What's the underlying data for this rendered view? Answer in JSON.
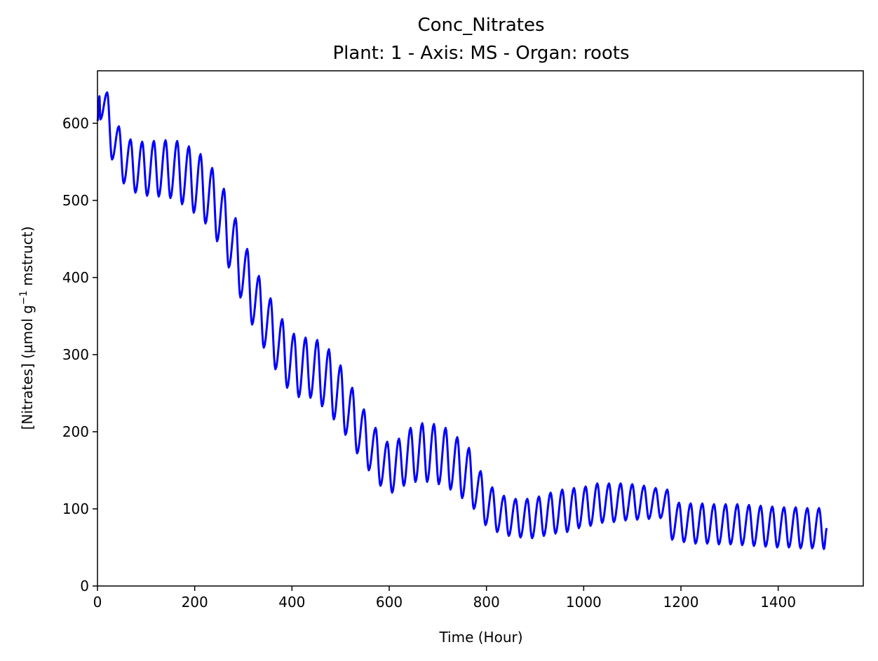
{
  "chart_data": {
    "type": "line",
    "title": "Conc_Nitrates",
    "subtitle": "Plant: 1 - Axis: MS - Organ: roots",
    "xlabel": "Time (Hour)",
    "ylabel_parts": [
      "[Nitrates] (µmol g",
      "−1",
      " mstruct)"
    ],
    "xlim": [
      0,
      1575
    ],
    "ylim": [
      0,
      668
    ],
    "xticks": [
      0,
      200,
      400,
      600,
      800,
      1000,
      1200,
      1400
    ],
    "yticks": [
      0,
      100,
      200,
      300,
      400,
      500,
      600
    ],
    "grid": false,
    "series": [
      {
        "color": "#0000ff",
        "period_hours": 24,
        "points_per_cycle": 14,
        "x_end": 1500,
        "peaks": [
          [
            4,
            635
          ],
          [
            20,
            640
          ],
          [
            44,
            596
          ],
          [
            68,
            579
          ],
          [
            92,
            576
          ],
          [
            116,
            577
          ],
          [
            140,
            578
          ],
          [
            164,
            577
          ],
          [
            188,
            570
          ],
          [
            212,
            560
          ],
          [
            236,
            542
          ],
          [
            260,
            515
          ],
          [
            284,
            477
          ],
          [
            308,
            437
          ],
          [
            332,
            402
          ],
          [
            356,
            373
          ],
          [
            380,
            346
          ],
          [
            404,
            327
          ],
          [
            428,
            322
          ],
          [
            452,
            319
          ],
          [
            476,
            307
          ],
          [
            500,
            286
          ],
          [
            524,
            257
          ],
          [
            548,
            229
          ],
          [
            572,
            205
          ],
          [
            596,
            187
          ],
          [
            620,
            191
          ],
          [
            644,
            205
          ],
          [
            668,
            211
          ],
          [
            692,
            210
          ],
          [
            716,
            205
          ],
          [
            740,
            193
          ],
          [
            764,
            179
          ],
          [
            788,
            149
          ],
          [
            812,
            128
          ],
          [
            836,
            117
          ],
          [
            860,
            113
          ],
          [
            884,
            113
          ],
          [
            908,
            116
          ],
          [
            932,
            121
          ],
          [
            956,
            125
          ],
          [
            980,
            127
          ],
          [
            1004,
            129
          ],
          [
            1028,
            133
          ],
          [
            1052,
            133
          ],
          [
            1076,
            133
          ],
          [
            1100,
            132
          ],
          [
            1124,
            130
          ],
          [
            1148,
            127
          ],
          [
            1172,
            125
          ],
          [
            1196,
            108
          ],
          [
            1220,
            107
          ],
          [
            1244,
            107
          ],
          [
            1268,
            106
          ],
          [
            1292,
            106
          ],
          [
            1316,
            106
          ],
          [
            1340,
            105
          ],
          [
            1364,
            104
          ],
          [
            1388,
            103
          ],
          [
            1412,
            102
          ],
          [
            1436,
            102
          ],
          [
            1460,
            101
          ],
          [
            1484,
            101
          ]
        ],
        "troughs": [
          [
            0,
            603
          ],
          [
            6,
            605
          ],
          [
            30,
            553
          ],
          [
            54,
            522
          ],
          [
            78,
            510
          ],
          [
            102,
            506
          ],
          [
            126,
            505
          ],
          [
            150,
            503
          ],
          [
            174,
            495
          ],
          [
            198,
            484
          ],
          [
            222,
            470
          ],
          [
            246,
            447
          ],
          [
            270,
            413
          ],
          [
            294,
            374
          ],
          [
            318,
            339
          ],
          [
            342,
            309
          ],
          [
            366,
            281
          ],
          [
            390,
            257
          ],
          [
            414,
            245
          ],
          [
            438,
            244
          ],
          [
            462,
            233
          ],
          [
            486,
            216
          ],
          [
            510,
            196
          ],
          [
            534,
            172
          ],
          [
            558,
            150
          ],
          [
            582,
            130
          ],
          [
            606,
            121
          ],
          [
            630,
            130
          ],
          [
            654,
            135
          ],
          [
            678,
            135
          ],
          [
            702,
            132
          ],
          [
            726,
            125
          ],
          [
            750,
            114
          ],
          [
            774,
            100
          ],
          [
            798,
            79
          ],
          [
            822,
            70
          ],
          [
            846,
            65
          ],
          [
            870,
            63
          ],
          [
            894,
            62
          ],
          [
            918,
            65
          ],
          [
            942,
            68
          ],
          [
            966,
            70
          ],
          [
            990,
            75
          ],
          [
            1014,
            78
          ],
          [
            1038,
            82
          ],
          [
            1062,
            83
          ],
          [
            1086,
            85
          ],
          [
            1110,
            86
          ],
          [
            1134,
            87
          ],
          [
            1158,
            88
          ],
          [
            1182,
            60
          ],
          [
            1206,
            57
          ],
          [
            1230,
            55
          ],
          [
            1254,
            55
          ],
          [
            1278,
            54
          ],
          [
            1302,
            54
          ],
          [
            1326,
            53
          ],
          [
            1350,
            52
          ],
          [
            1374,
            51
          ],
          [
            1398,
            50
          ],
          [
            1422,
            50
          ],
          [
            1446,
            49
          ],
          [
            1470,
            49
          ],
          [
            1494,
            48
          ],
          [
            1500,
            75
          ]
        ]
      }
    ]
  }
}
